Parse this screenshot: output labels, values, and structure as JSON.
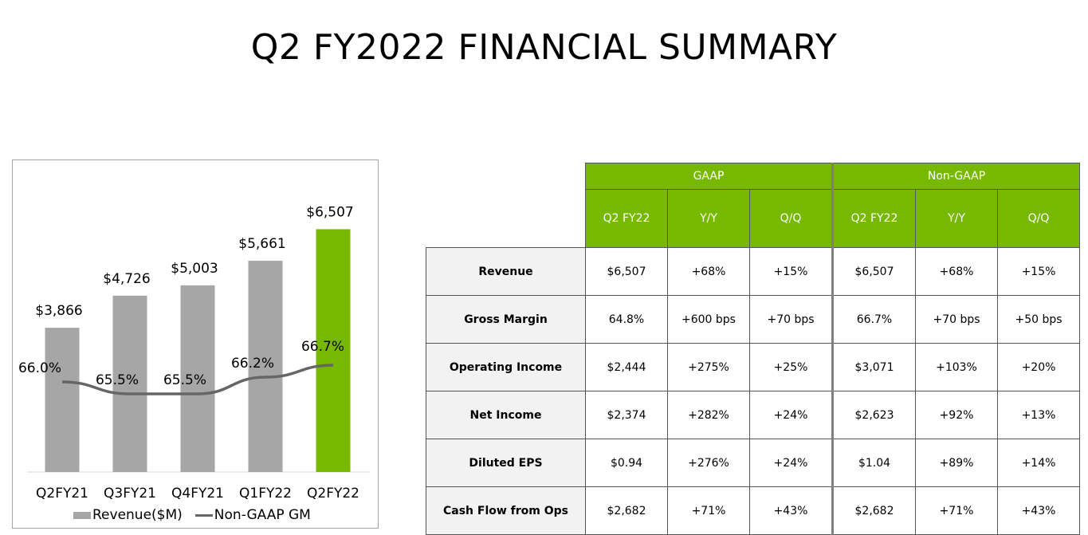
{
  "title": "Q2 FY2022 FINANCIAL SUMMARY",
  "chart_data": {
    "type": "bar",
    "categories": [
      "Q2FY21",
      "Q3FY21",
      "Q4FY21",
      "Q1FY22",
      "Q2FY22"
    ],
    "series": [
      {
        "name": "Revenue($M)",
        "type": "bar",
        "values": [
          3866,
          4726,
          5003,
          5661,
          6507
        ],
        "labels": [
          "$3,866",
          "$4,726",
          "$5,003",
          "$5,661",
          "$6,507"
        ]
      },
      {
        "name": "Non-GAAP GM",
        "type": "line",
        "values": [
          66.0,
          65.5,
          65.5,
          66.2,
          66.7
        ],
        "labels": [
          "66.0%",
          "65.5%",
          "65.5%",
          "66.2%",
          "66.7%"
        ]
      }
    ],
    "bar_colors": [
      "#a6a6a6",
      "#a6a6a6",
      "#a6a6a6",
      "#a6a6a6",
      "#76b900"
    ],
    "line_color": "#666666",
    "ylim": [
      0,
      7500
    ],
    "line_ylim": [
      63,
      70
    ],
    "legend": [
      "Revenue($M)",
      "Non-GAAP GM"
    ]
  },
  "table": {
    "groups": [
      "GAAP",
      "Non-GAAP"
    ],
    "columns": [
      "Q2 FY22",
      "Y/Y",
      "Q/Q",
      "Q2 FY22",
      "Y/Y",
      "Q/Q"
    ],
    "rows": [
      {
        "label": "Revenue",
        "values": [
          "$6,507",
          "+68%",
          "+15%",
          "$6,507",
          "+68%",
          "+15%"
        ]
      },
      {
        "label": "Gross Margin",
        "values": [
          "64.8%",
          "+600 bps",
          "+70 bps",
          "66.7%",
          "+70 bps",
          "+50 bps"
        ]
      },
      {
        "label": "Operating Income",
        "values": [
          "$2,444",
          "+275%",
          "+25%",
          "$3,071",
          "+103%",
          "+20%"
        ]
      },
      {
        "label": "Net Income",
        "values": [
          "$2,374",
          "+282%",
          "+24%",
          "$2,623",
          "+92%",
          "+13%"
        ]
      },
      {
        "label": "Diluted EPS",
        "values": [
          "$0.94",
          "+276%",
          "+24%",
          "$1.04",
          "+89%",
          "+14%"
        ]
      },
      {
        "label": "Cash Flow from Ops",
        "values": [
          "$2,682",
          "+71%",
          "+43%",
          "$2,682",
          "+71%",
          "+43%"
        ]
      }
    ]
  }
}
